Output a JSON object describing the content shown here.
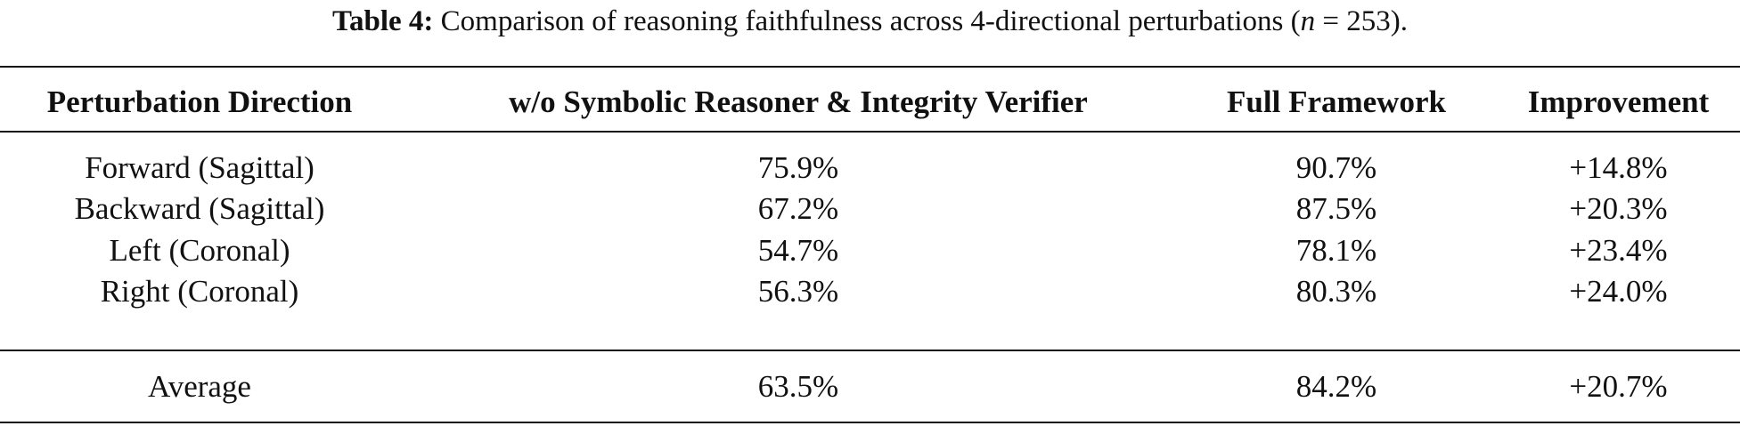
{
  "caption": {
    "label": "Table 4:",
    "text_before": " Comparison of reasoning faithfulness across 4-directional perturbations (",
    "n_symbol": "n",
    "text_after": " = 253)."
  },
  "table": {
    "headers": [
      "Perturbation Direction",
      "w/o Symbolic Reasoner & Integrity Verifier",
      "Full Framework",
      "Improvement"
    ],
    "rows": [
      [
        "Forward (Sagittal)",
        "75.9%",
        "90.7%",
        "+14.8%"
      ],
      [
        "Backward (Sagittal)",
        "67.2%",
        "87.5%",
        "+20.3%"
      ],
      [
        "Left (Coronal)",
        "54.7%",
        "78.1%",
        "+23.4%"
      ],
      [
        "Right (Coronal)",
        "56.3%",
        "80.3%",
        "+24.0%"
      ]
    ],
    "summary_row": [
      "Average",
      "63.5%",
      "84.2%",
      "+20.7%"
    ]
  }
}
